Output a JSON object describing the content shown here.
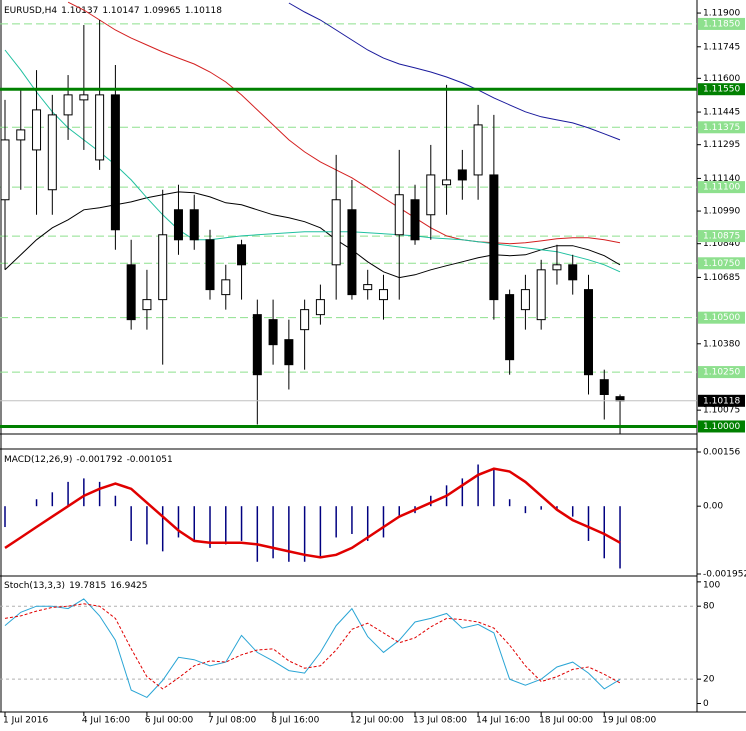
{
  "chart_data": [
    {
      "type": "candlestick",
      "symbol": "EURUSD,H4",
      "categories": [
        "1 Jul 2016",
        null,
        null,
        null,
        null,
        "4 Jul 16:00",
        null,
        null,
        null,
        "6 Jul 00:00",
        null,
        null,
        null,
        "7 Jul 08:00",
        null,
        null,
        null,
        "8 Jul 16:00",
        null,
        null,
        null,
        null,
        "12 Jul 00:00",
        null,
        null,
        null,
        "13 Jul 08:00",
        null,
        null,
        null,
        "14 Jul 16:00",
        null,
        null,
        null,
        "18 Jul 00:00",
        null,
        null,
        null,
        "19 Jul 08:00",
        null
      ],
      "open": [
        1.11042,
        1.11317,
        1.11271,
        1.11088,
        1.11432,
        1.11501,
        1.11225,
        1.11524,
        1.10743,
        1.10537,
        1.10583,
        1.10996,
        1.10996,
        1.10858,
        1.10606,
        1.10835,
        1.10514,
        1.10491,
        1.10399,
        1.10445,
        1.10514,
        1.10743,
        1.10996,
        1.10629,
        1.10583,
        1.10881,
        1.11042,
        1.10973,
        1.11111,
        1.11179,
        1.11156,
        1.11156,
        1.10606,
        1.10537,
        1.10491,
        1.1072,
        1.10743,
        1.10629,
        1.10215,
        1.10137
      ],
      "high": [
        1.11501,
        1.11547,
        1.11638,
        1.11524,
        1.11615,
        1.11845,
        1.11868,
        1.11661,
        1.10858,
        1.1072,
        1.11088,
        1.11111,
        1.11065,
        1.10904,
        1.10743,
        1.10858,
        1.10583,
        1.10583,
        1.10491,
        1.10583,
        1.10652,
        1.11248,
        1.11133,
        1.1072,
        1.10697,
        1.11271,
        1.11111,
        1.11294,
        1.1157,
        1.11271,
        1.11478,
        1.11432,
        1.10629,
        1.10697,
        1.10766,
        1.10835,
        1.10789,
        1.10697,
        1.10261,
        1.10147
      ],
      "low": [
        1.1072,
        1.11088,
        1.10973,
        1.10973,
        1.11317,
        1.11271,
        1.11179,
        1.10812,
        1.10445,
        1.10445,
        1.10284,
        1.10789,
        1.10812,
        1.10583,
        1.10537,
        1.10583,
        1.10009,
        1.10284,
        1.1017,
        1.10261,
        1.10468,
        1.10583,
        1.10583,
        1.10583,
        1.10491,
        1.10583,
        1.10835,
        1.10858,
        1.10973,
        1.11042,
        1.11042,
        1.10491,
        1.10238,
        1.10445,
        1.10445,
        1.10652,
        1.10606,
        1.10147,
        1.10032,
        1.09965
      ],
      "close": [
        1.11317,
        1.11363,
        1.11455,
        1.11432,
        1.11524,
        1.11524,
        1.11524,
        1.10904,
        1.10491,
        1.10583,
        1.10881,
        1.10858,
        1.10858,
        1.10629,
        1.10674,
        1.10743,
        1.10238,
        1.10376,
        1.10284,
        1.10537,
        1.10583,
        1.11042,
        1.10606,
        1.10652,
        1.10629,
        1.11065,
        1.10858,
        1.11156,
        1.11133,
        1.11133,
        1.11386,
        1.10583,
        1.10307,
        1.10629,
        1.1072,
        1.10743,
        1.10674,
        1.10238,
        1.10147,
        1.10118
      ],
      "up_color": "#ffffff",
      "down_color": "#000000",
      "series": [
        {
          "color": "#1a1a9c",
          "values": [
            null,
            null,
            null,
            null,
            null,
            null,
            null,
            null,
            null,
            null,
            null,
            null,
            null,
            null,
            null,
            null,
            null,
            null,
            1.11946,
            1.11905,
            1.11868,
            1.11822,
            1.11776,
            1.1173,
            1.11693,
            1.11666,
            1.11648,
            1.11629,
            1.11606,
            1.11579,
            1.11547,
            1.1151,
            1.11478,
            1.11446,
            1.11423,
            1.11409,
            1.11395,
            1.11372,
            1.11345,
            1.11317
          ]
        },
        {
          "color": "#d42020",
          "values": [
            null,
            null,
            null,
            null,
            1.1195,
            1.11914,
            1.11868,
            1.11822,
            1.11785,
            1.11753,
            1.11721,
            1.11693,
            1.11666,
            1.11629,
            1.11583,
            1.11524,
            1.11455,
            1.11386,
            1.11317,
            1.11262,
            1.11216,
            1.11179,
            1.11143,
            1.11097,
            1.11051,
            1.11005,
            1.10959,
            1.10913,
            1.10876,
            1.10858,
            1.10849,
            1.10844,
            1.1084,
            1.10844,
            1.10853,
            1.10863,
            1.10867,
            1.10867,
            1.10858,
            1.10844
          ]
        },
        {
          "color": "#000000",
          "values": [
            1.1072,
            1.10789,
            1.10858,
            1.10913,
            1.1095,
            1.10996,
            1.11005,
            1.11019,
            1.11032,
            1.11051,
            1.11065,
            1.11078,
            1.11074,
            1.11055,
            1.11028,
            1.11019,
            1.10996,
            1.10973,
            1.10959,
            1.10941,
            1.10913,
            1.10858,
            1.10812,
            1.10757,
            1.10711,
            1.10684,
            1.10697,
            1.1072,
            1.10739,
            1.10757,
            1.10775,
            1.10789,
            1.10785,
            1.10789,
            1.10812,
            1.10831,
            1.10831,
            1.10812,
            1.10785,
            1.10743
          ]
        },
        {
          "color": "#20c0a0",
          "values": [
            1.1173,
            1.11638,
            1.11537,
            1.11446,
            1.11372,
            1.11317,
            1.11262,
            1.11202,
            1.11133,
            1.11051,
            1.10973,
            1.10904,
            1.10858,
            1.10858,
            1.10867,
            1.10876,
            1.10881,
            1.10886,
            1.1089,
            1.10895,
            1.10895,
            1.10895,
            1.10895,
            1.1089,
            1.10886,
            1.10881,
            1.10876,
            1.10867,
            1.10863,
            1.10858,
            1.10849,
            1.1084,
            1.10831,
            1.10821,
            1.10812,
            1.10803,
            1.10785,
            1.10766,
            1.10743,
            1.10711
          ]
        }
      ],
      "ylim": [
        1.0997,
        1.1196
      ],
      "yticks": [
        {
          "value": 1.119,
          "label": "1.11900"
        },
        {
          "value": 1.11745,
          "label": "1.11745"
        },
        {
          "value": 1.116,
          "label": "1.11600"
        },
        {
          "value": 1.11445,
          "label": "1.11445"
        },
        {
          "value": 1.11295,
          "label": "1.11295"
        },
        {
          "value": 1.1114,
          "label": "1.11140"
        },
        {
          "value": 1.1099,
          "label": "1.10990"
        },
        {
          "value": 1.1084,
          "label": "1.10840"
        },
        {
          "value": 1.10685,
          "label": "1.10685"
        },
        {
          "value": 1.1038,
          "label": "1.10380"
        },
        {
          "value": 1.10075,
          "label": "1.10075"
        }
      ],
      "grid": false,
      "levels": [
        {
          "value": 1.1185,
          "label": "1.11850"
        },
        {
          "value": 1.11375,
          "label": "1.11375"
        },
        {
          "value": 1.111,
          "label": "1.11100"
        },
        {
          "value": 1.10875,
          "label": "1.10875"
        },
        {
          "value": 1.1075,
          "label": "1.10750"
        },
        {
          "value": 1.105,
          "label": "1.10500"
        },
        {
          "value": 1.1025,
          "label": "1.10250"
        }
      ],
      "level_color": "#8ee08e",
      "lines": [
        {
          "value": 1.1155,
          "label": "1.11550"
        },
        {
          "value": 1.1,
          "label": "1.10000"
        }
      ],
      "line_color": "#008000"
    },
    {
      "type": "macd",
      "name": "MACD(12,26,9)",
      "values": [
        -0.0006,
        0,
        0.0002,
        0.0004,
        0.0007,
        0.0008,
        0.0007,
        0.0003,
        -0.001,
        -0.0011,
        -0.0013,
        -0.0009,
        -0.001,
        -0.0012,
        -0.0011,
        -0.001,
        -0.0016,
        -0.0015,
        -0.0016,
        -0.0016,
        -0.0015,
        -0.0009,
        -0.0008,
        -0.001,
        -0.0009,
        -0.0003,
        -0.0002,
        0.0003,
        0.0006,
        0.0008,
        0.0012,
        0.0011,
        0.0002,
        -0.0002,
        -0.0001,
        -0.0001,
        -0.0003,
        -0.001,
        -0.0015,
        -0.001792
      ],
      "signal": [
        -0.0012,
        -0.0009,
        -0.0006,
        -0.0003,
        0,
        0.0003,
        0.0005,
        0.00065,
        0.0005,
        0.0001,
        -0.0003,
        -0.0007,
        -0.001,
        -0.00105,
        -0.00105,
        -0.00105,
        -0.0011,
        -0.0012,
        -0.0013,
        -0.0014,
        -0.00147,
        -0.0014,
        -0.0012,
        -0.0009,
        -0.0006,
        -0.0003,
        -0.0001,
        0.0001,
        0.0003,
        0.0006,
        0.0009,
        0.00108,
        0.001,
        0.0007,
        0.0003,
        -0.0001,
        -0.0004,
        -0.0006,
        -0.0008,
        -0.001051
      ],
      "color": "#000080",
      "signal_color": "#e00000",
      "ylim": [
        -0.001952,
        0.00156
      ],
      "yticks": [
        0.00156,
        {
          "value": 0,
          "label": "0.00"
        },
        -0.001952
      ]
    },
    {
      "type": "stochastic",
      "name": "Stoch(13,3,3)",
      "series": [
        {
          "color": "#2aa5d5",
          "values": [
            64,
            75,
            80,
            80,
            78,
            86,
            72,
            52,
            11,
            5,
            19,
            38,
            36,
            31,
            34,
            56,
            42,
            35,
            27,
            25,
            42,
            64,
            78,
            55,
            42,
            52,
            67,
            70,
            74,
            62,
            65,
            58,
            20,
            15,
            20,
            30,
            34,
            25,
            12,
            19.7815
          ]
        },
        {
          "color": "#e00000",
          "dash": true,
          "values": [
            70,
            72,
            76,
            79,
            80,
            82,
            80,
            70,
            45,
            22,
            12,
            21,
            31,
            35,
            34,
            40,
            44,
            45,
            35,
            29,
            31,
            44,
            61,
            66,
            58,
            50,
            54,
            63,
            70,
            69,
            67,
            62,
            48,
            31,
            18,
            22,
            28,
            30,
            24,
            16.9425
          ]
        }
      ],
      "ylim": [
        -7,
        104
      ],
      "yticks": [
        100,
        80,
        20,
        0
      ],
      "levels": [
        80,
        20
      ]
    }
  ]
}
